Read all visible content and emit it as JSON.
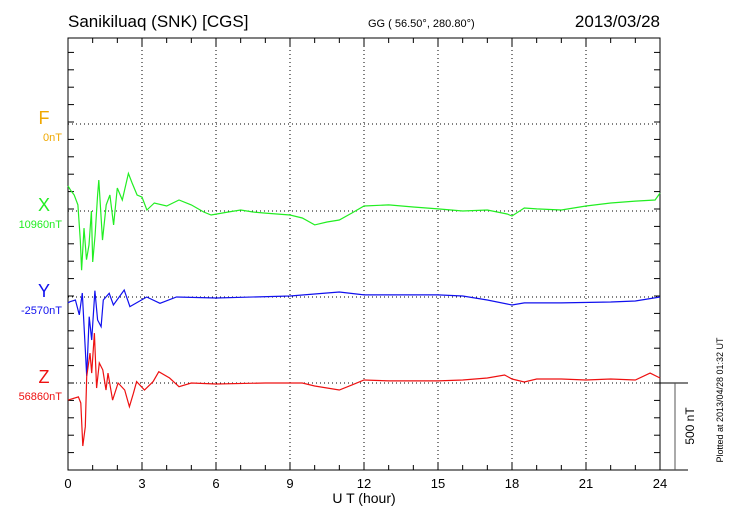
{
  "header": {
    "station": "Sanikiluaq (SNK)  [CGS]",
    "coords": "GG ( 56.50°, 280.80°)",
    "date": "2013/03/28"
  },
  "footer_note": "Plotted at 2013/04/28 01:32 UT",
  "chart_data": {
    "type": "line",
    "title": "Sanikiluaq (SNK)  [CGS]",
    "xlabel": "U T (hour)",
    "xlim": [
      0,
      24
    ],
    "xticks": [
      "0",
      "3",
      "6",
      "9",
      "12",
      "15",
      "18",
      "21",
      "24"
    ],
    "scale_bar_label": "500 nT",
    "scale_bar_nT": 500,
    "grid": true,
    "series": [
      {
        "name": "F",
        "baseline_label": "0nT",
        "color": "#f0a800",
        "points": []
      },
      {
        "name": "X",
        "baseline_label": "10960nT",
        "color": "#22ee22",
        "points": [
          [
            0,
            144
          ],
          [
            0.1,
            120
          ],
          [
            0.25,
            92
          ],
          [
            0.4,
            35
          ],
          [
            0.5,
            -167
          ],
          [
            0.55,
            -340
          ],
          [
            0.65,
            -98
          ],
          [
            0.75,
            -280
          ],
          [
            0.85,
            -195
          ],
          [
            0.95,
            0
          ],
          [
            1.0,
            -293
          ],
          [
            1.1,
            -138
          ],
          [
            1.2,
            92
          ],
          [
            1.25,
            178
          ],
          [
            1.4,
            -167
          ],
          [
            1.55,
            35
          ],
          [
            1.7,
            92
          ],
          [
            1.85,
            -80
          ],
          [
            2.0,
            132
          ],
          [
            2.2,
            63
          ],
          [
            2.45,
            216
          ],
          [
            2.6,
            161
          ],
          [
            2.8,
            92
          ],
          [
            3.0,
            80
          ],
          [
            3.2,
            6
          ],
          [
            3.5,
            46
          ],
          [
            4.0,
            29
          ],
          [
            4.5,
            63
          ],
          [
            5.0,
            35
          ],
          [
            5.5,
            -6
          ],
          [
            5.8,
            -23
          ],
          [
            6.5,
            -6
          ],
          [
            7,
            6
          ],
          [
            7.5,
            -6
          ],
          [
            8,
            -12
          ],
          [
            9,
            -23
          ],
          [
            9.5,
            -40
          ],
          [
            10,
            -80
          ],
          [
            10.5,
            -63
          ],
          [
            11,
            -52
          ],
          [
            11.5,
            -12
          ],
          [
            12,
            29
          ],
          [
            13,
            35
          ],
          [
            14,
            23
          ],
          [
            15,
            12
          ],
          [
            16,
            0
          ],
          [
            17,
            6
          ],
          [
            17.8,
            -17
          ],
          [
            18,
            -29
          ],
          [
            18.5,
            17
          ],
          [
            19,
            12
          ],
          [
            20,
            6
          ],
          [
            21,
            29
          ],
          [
            22,
            46
          ],
          [
            23,
            57
          ],
          [
            23.8,
            63
          ],
          [
            24,
            103
          ]
        ]
      },
      {
        "name": "Y",
        "baseline_label": "-2570nT",
        "color": "#1010ee",
        "points": [
          [
            0,
            -34
          ],
          [
            0.08,
            -27
          ],
          [
            0.3,
            -17
          ],
          [
            0.46,
            -103
          ],
          [
            0.58,
            23
          ],
          [
            0.76,
            -454
          ],
          [
            0.86,
            -113
          ],
          [
            0.96,
            -247
          ],
          [
            1.09,
            36
          ],
          [
            1.2,
            -132
          ],
          [
            1.34,
            -170
          ],
          [
            1.43,
            -17
          ],
          [
            1.67,
            21
          ],
          [
            1.84,
            -46
          ],
          [
            2.28,
            40
          ],
          [
            2.51,
            -55
          ],
          [
            3.19,
            0
          ],
          [
            3.73,
            -36
          ],
          [
            4.4,
            0
          ],
          [
            6,
            -6
          ],
          [
            9,
            6
          ],
          [
            11,
            29
          ],
          [
            12,
            12
          ],
          [
            15,
            12
          ],
          [
            16,
            6
          ],
          [
            17,
            -17
          ],
          [
            18,
            -46
          ],
          [
            18.5,
            -34
          ],
          [
            20,
            -34
          ],
          [
            22,
            -29
          ],
          [
            23,
            -23
          ],
          [
            24,
            0
          ]
        ]
      },
      {
        "name": "Z",
        "baseline_label": "56860nT",
        "color": "#ee1111",
        "points": [
          [
            0,
            -98
          ],
          [
            0.42,
            -80
          ],
          [
            0.52,
            -115
          ],
          [
            0.6,
            -362
          ],
          [
            0.7,
            -251
          ],
          [
            0.76,
            36
          ],
          [
            0.89,
            172
          ],
          [
            0.96,
            57
          ],
          [
            1.07,
            287
          ],
          [
            1.16,
            -29
          ],
          [
            1.27,
            115
          ],
          [
            1.41,
            75
          ],
          [
            1.54,
            -40
          ],
          [
            1.62,
            57
          ],
          [
            1.81,
            -98
          ],
          [
            2.03,
            0
          ],
          [
            2.3,
            -40
          ],
          [
            2.49,
            -136
          ],
          [
            2.65,
            -59
          ],
          [
            2.78,
            8
          ],
          [
            3.1,
            -40
          ],
          [
            3.45,
            8
          ],
          [
            3.68,
            65
          ],
          [
            4.12,
            29
          ],
          [
            4.5,
            -21
          ],
          [
            5,
            0
          ],
          [
            6,
            -6
          ],
          [
            8,
            0
          ],
          [
            9.5,
            0
          ],
          [
            10,
            -17
          ],
          [
            11,
            -40
          ],
          [
            11.5,
            -12
          ],
          [
            12,
            17
          ],
          [
            13,
            12
          ],
          [
            15,
            12
          ],
          [
            16,
            17
          ],
          [
            17,
            29
          ],
          [
            17.7,
            46
          ],
          [
            18,
            23
          ],
          [
            18.5,
            6
          ],
          [
            19,
            23
          ],
          [
            20,
            23
          ],
          [
            21,
            17
          ],
          [
            22,
            23
          ],
          [
            23,
            17
          ],
          [
            23.6,
            57
          ],
          [
            24,
            29
          ]
        ]
      }
    ]
  }
}
